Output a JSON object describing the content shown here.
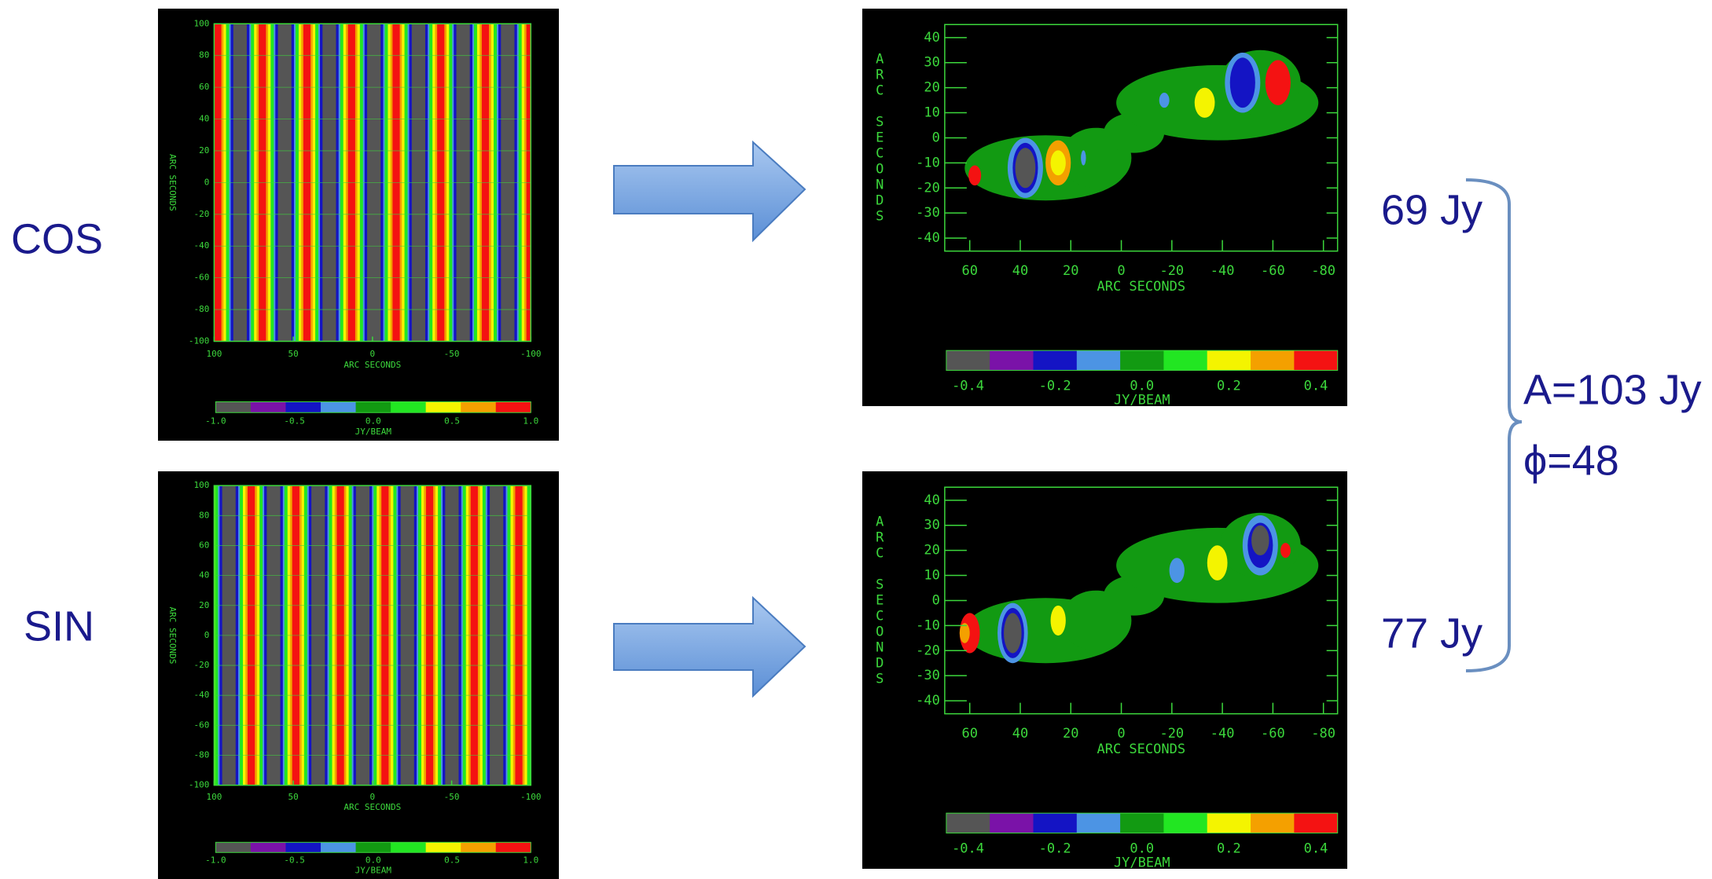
{
  "rows": [
    {
      "label": "COS",
      "flux": "69 Jy"
    },
    {
      "label": "SIN",
      "flux": "77 Jy"
    }
  ],
  "fringe_panel": {
    "yticks": [
      "100",
      "80",
      "60",
      "40",
      "20",
      "0",
      "-20",
      "-40",
      "-60",
      "-80",
      "-100"
    ],
    "xticks": [
      "100",
      "50",
      "0",
      "-50",
      "-100"
    ],
    "xlabel": "ARC SECONDS",
    "ylabel": "ARC SECONDS",
    "colorbar_ticks": [
      "-1.0",
      "-0.5",
      "0.0",
      "0.5",
      "1.0"
    ],
    "colorbar_label": "JY/BEAM"
  },
  "image_panel": {
    "yticks": [
      "40",
      "30",
      "20",
      "10",
      "0",
      "-10",
      "-20",
      "-30",
      "-40"
    ],
    "xticks": [
      "60",
      "40",
      "20",
      "0",
      "-20",
      "-40",
      "-60",
      "-80"
    ],
    "xlabel": "ARC SECONDS",
    "ylabel": "ARC SECONDS",
    "colorbar_ticks": [
      "-0.4",
      "-0.2",
      "0.0",
      "0.2",
      "0.4"
    ],
    "colorbar_label": "JY/BEAM"
  },
  "result": {
    "amplitude": "A=103 Jy",
    "phase": "ϕ=48"
  }
}
